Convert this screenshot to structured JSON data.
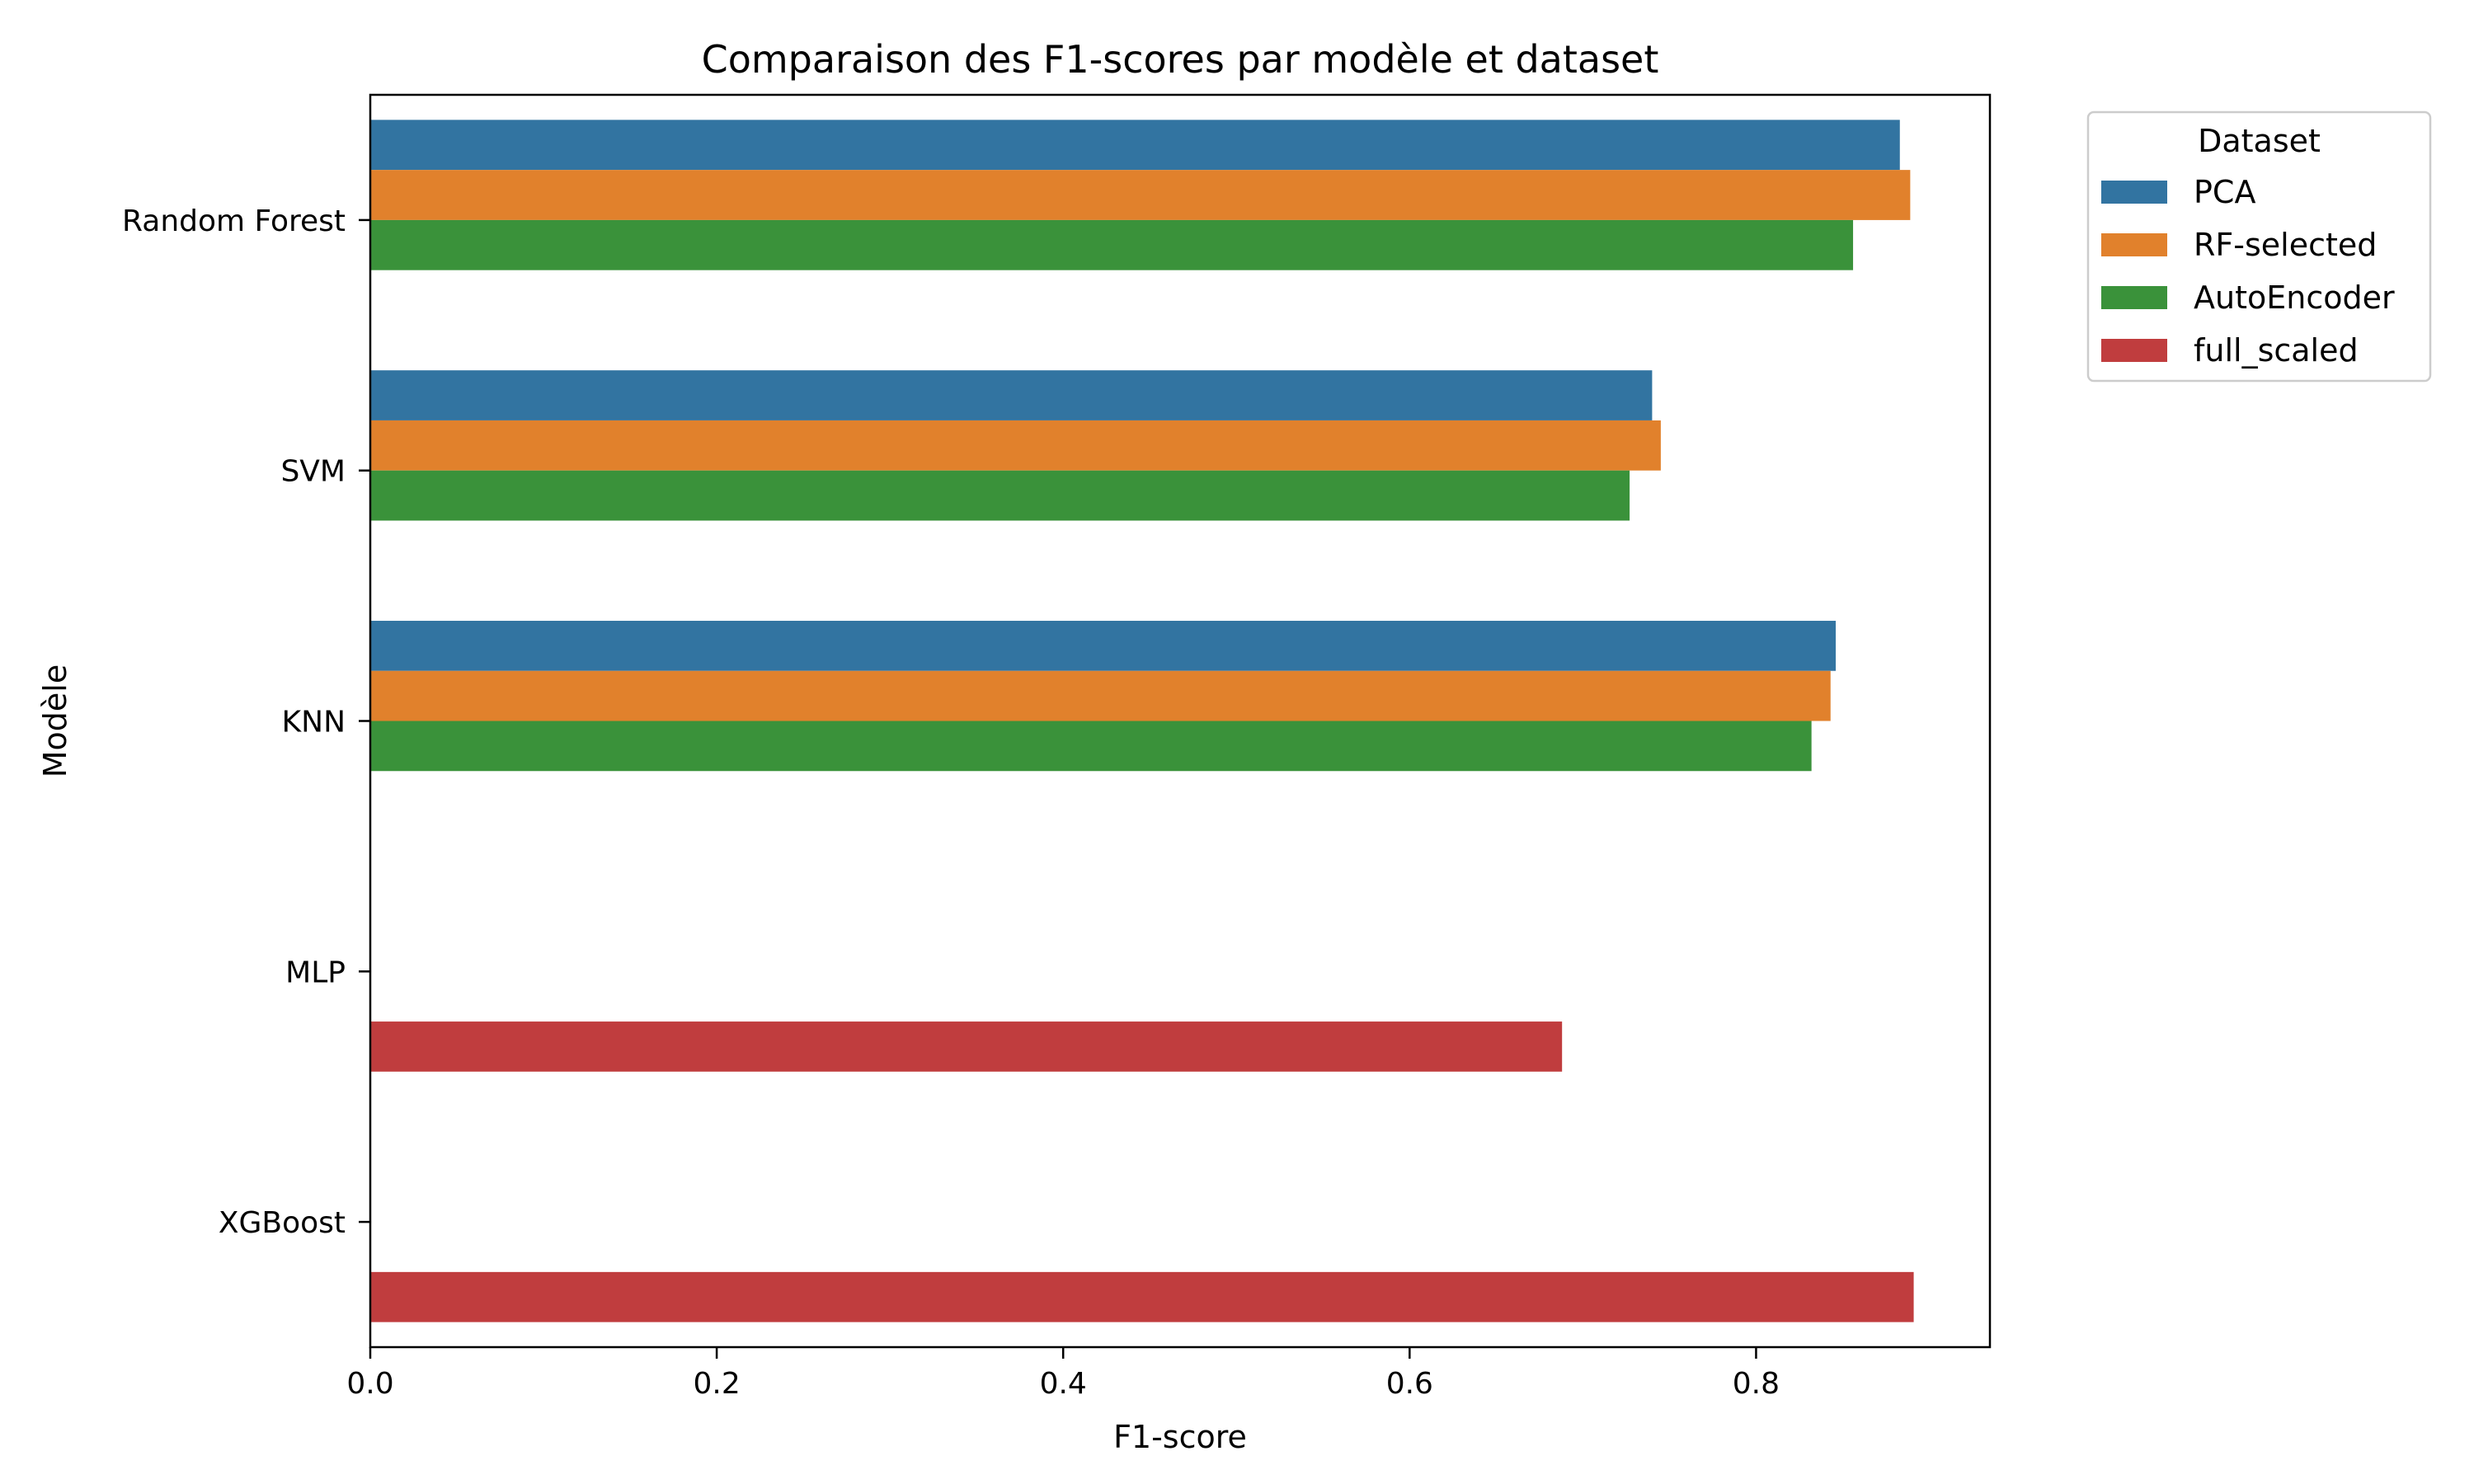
{
  "chart_data": {
    "type": "bar",
    "orientation": "horizontal",
    "title": "Comparaison des F1-scores par modèle et dataset",
    "xlabel": "F1-score",
    "ylabel": "Modèle",
    "categories": [
      "Random Forest",
      "SVM",
      "KNN",
      "MLP",
      "XGBoost"
    ],
    "xlim": [
      0,
      0.935
    ],
    "xticks": [
      "0.0",
      "0.2",
      "0.4",
      "0.6",
      "0.8"
    ],
    "xtick_values": [
      0.0,
      0.2,
      0.4,
      0.6,
      0.8
    ],
    "grid": false,
    "legend": {
      "title": "Dataset",
      "placement": "upper-right-outside"
    },
    "series": [
      {
        "name": "PCA",
        "color": "#3274a1",
        "values": [
          0.883,
          0.74,
          0.846,
          null,
          null
        ]
      },
      {
        "name": "RF-selected",
        "color": "#e1812c",
        "values": [
          0.889,
          0.745,
          0.843,
          null,
          null
        ]
      },
      {
        "name": "AutoEncoder",
        "color": "#3a923a",
        "values": [
          0.856,
          0.727,
          0.832,
          null,
          null
        ]
      },
      {
        "name": "full_scaled",
        "color": "#c03d3e",
        "values": [
          null,
          null,
          null,
          0.688,
          0.891
        ]
      }
    ]
  }
}
